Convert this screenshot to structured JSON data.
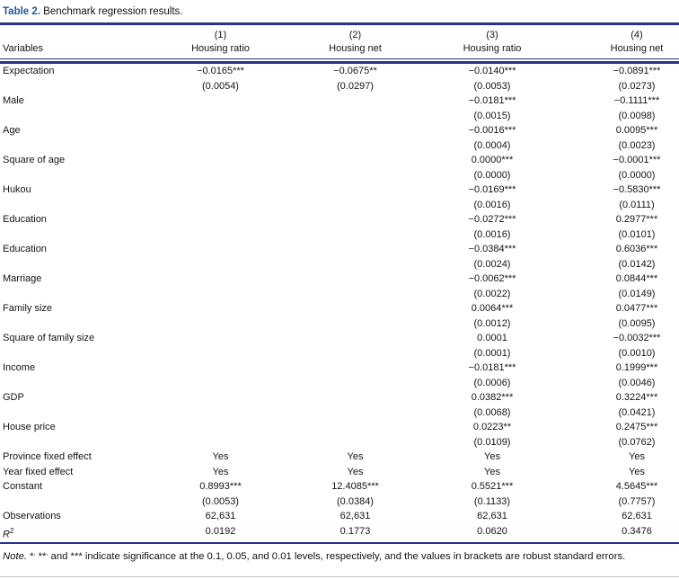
{
  "title": {
    "label": "Table 2.",
    "text": "Benchmark regression results."
  },
  "colors": {
    "rule_navy": "#27308c",
    "title_blue": "#2355a4",
    "text": "#141414",
    "background": "#ffffff"
  },
  "header": {
    "variables_label": "Variables",
    "numbers": [
      "(1)",
      "(2)",
      "(3)",
      "(4)"
    ],
    "columns": [
      "Housing ratio",
      "Housing net",
      "Housing ratio",
      "Housing net"
    ]
  },
  "table": {
    "r2": {
      "base": "R",
      "sup": "2"
    },
    "rows": [
      {
        "label": "Expectation",
        "coef": [
          "−0.0165***",
          "−0.0675**",
          "−0.0140***",
          "−0.0891***"
        ],
        "se": [
          "(0.0054)",
          "(0.0297)",
          "(0.0053)",
          "(0.0273)"
        ]
      },
      {
        "label": "Male",
        "coef": [
          "",
          "",
          "−0.0181***",
          "−0.1111***"
        ],
        "se": [
          "",
          "",
          "(0.0015)",
          "(0.0098)"
        ]
      },
      {
        "label": "Age",
        "coef": [
          "",
          "",
          "−0.0016***",
          "0.0095***"
        ],
        "se": [
          "",
          "",
          "(0.0004)",
          "(0.0023)"
        ]
      },
      {
        "label": "Square of age",
        "coef": [
          "",
          "",
          "0.0000***",
          "−0.0001***"
        ],
        "se": [
          "",
          "",
          "(0.0000)",
          "(0.0000)"
        ]
      },
      {
        "label": "Hukou",
        "coef": [
          "",
          "",
          "−0.0169***",
          "−0.5830***"
        ],
        "se": [
          "",
          "",
          "(0.0016)",
          "(0.0111)"
        ]
      },
      {
        "label": "Education",
        "coef": [
          "",
          "",
          "−0.0272***",
          "0.2977***"
        ],
        "se": [
          "",
          "",
          "(0.0016)",
          "(0.0101)"
        ]
      },
      {
        "label": "Education",
        "coef": [
          "",
          "",
          "−0.0384***",
          "0.6036***"
        ],
        "se": [
          "",
          "",
          "(0.0024)",
          "(0.0142)"
        ]
      },
      {
        "label": "Marriage",
        "coef": [
          "",
          "",
          "−0.0062***",
          "0.0844***"
        ],
        "se": [
          "",
          "",
          "(0.0022)",
          "(0.0149)"
        ]
      },
      {
        "label": "Family size",
        "coef": [
          "",
          "",
          "0.0064***",
          "0.0477***"
        ],
        "se": [
          "",
          "",
          "(0.0012)",
          "(0.0095)"
        ]
      },
      {
        "label": "Square of family size",
        "coef": [
          "",
          "",
          "0.0001",
          "−0.0032***"
        ],
        "se": [
          "",
          "",
          "(0.0001)",
          "(0.0010)"
        ]
      },
      {
        "label": "Income",
        "coef": [
          "",
          "",
          "−0.0181***",
          "0.1999***"
        ],
        "se": [
          "",
          "",
          "(0.0006)",
          "(0.0046)"
        ]
      },
      {
        "label": "GDP",
        "coef": [
          "",
          "",
          "0.0382***",
          "0.3224***"
        ],
        "se": [
          "",
          "",
          "(0.0068)",
          "(0.0421)"
        ]
      },
      {
        "label": "House price",
        "coef": [
          "",
          "",
          "0.0223**",
          "0.2475***"
        ],
        "se": [
          "",
          "",
          "(0.0109)",
          "(0.0762)"
        ]
      },
      {
        "label": "Province fixed effect",
        "values": [
          "Yes",
          "Yes",
          "Yes",
          "Yes"
        ]
      },
      {
        "label": "Year fixed effect",
        "values": [
          "Yes",
          "Yes",
          "Yes",
          "Yes"
        ]
      },
      {
        "label": "Constant",
        "coef": [
          "0.8993***",
          "12.4085***",
          "0.5521***",
          "4.5645***"
        ],
        "se": [
          "(0.0053)",
          "(0.0384)",
          "(0.1133)",
          "(0.7757)"
        ]
      },
      {
        "label": "Observations",
        "values": [
          "62,631",
          "62,631",
          "62,631",
          "62,631"
        ]
      },
      {
        "values": [
          "0.0192",
          "0.1773",
          "0.0620",
          "0.3476"
        ]
      }
    ]
  },
  "note": {
    "prefix": "Note.",
    "star1": "*",
    "comma1": ",",
    "star2": "**",
    "comma2": ",",
    "and_word": "and",
    "star3": "***",
    "rest": "indicate significance at the 0.1, 0.05, and 0.01 levels, respectively, and the values in brackets are robust standard errors."
  }
}
